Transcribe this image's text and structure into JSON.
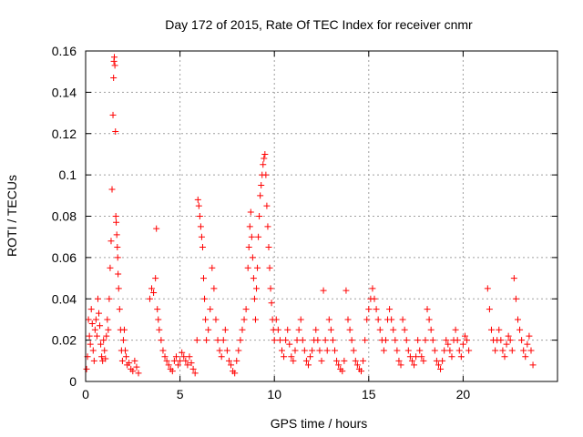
{
  "chart_data": {
    "type": "scatter",
    "title": "Day 172 of 2015, Rate Of TEC Index for receiver cnmr",
    "xlabel": "GPS time / hours",
    "ylabel": "ROTI / TECUs",
    "xlim": [
      0,
      25
    ],
    "ylim": [
      0,
      0.16
    ],
    "xticks": [
      0,
      5,
      10,
      15,
      20
    ],
    "xtick_labels": [
      "0",
      "5",
      "10",
      "15",
      "20"
    ],
    "yticks": [
      0,
      0.02,
      0.04,
      0.06,
      0.08,
      0.1,
      0.12,
      0.14,
      0.16
    ],
    "ytick_labels": [
      "0",
      "0.02",
      "0.04",
      "0.06",
      "0.08",
      "0.1",
      "0.12",
      "0.14",
      "0.16"
    ],
    "grid": true,
    "marker": "+",
    "color": "#ff0000",
    "series": [
      {
        "name": "ROTI",
        "points": [
          [
            0.05,
            0.006
          ],
          [
            0.1,
            0.012
          ],
          [
            0.15,
            0.03
          ],
          [
            0.2,
            0.022
          ],
          [
            0.25,
            0.018
          ],
          [
            0.3,
            0.035
          ],
          [
            0.35,
            0.028
          ],
          [
            0.4,
            0.015
          ],
          [
            0.45,
            0.01
          ],
          [
            0.5,
            0.025
          ],
          [
            0.55,
            0.03
          ],
          [
            0.6,
            0.022
          ],
          [
            0.65,
            0.04
          ],
          [
            0.7,
            0.033
          ],
          [
            0.75,
            0.027
          ],
          [
            0.8,
            0.018
          ],
          [
            0.85,
            0.012
          ],
          [
            0.9,
            0.01
          ],
          [
            0.95,
            0.02
          ],
          [
            1.0,
            0.015
          ],
          [
            1.05,
            0.011
          ],
          [
            1.1,
            0.022
          ],
          [
            1.15,
            0.03
          ],
          [
            1.2,
            0.025
          ],
          [
            1.25,
            0.04
          ],
          [
            1.3,
            0.055
          ],
          [
            1.35,
            0.068
          ],
          [
            1.4,
            0.093
          ],
          [
            1.45,
            0.129
          ],
          [
            1.48,
            0.147
          ],
          [
            1.5,
            0.155
          ],
          [
            1.52,
            0.157
          ],
          [
            1.55,
            0.153
          ],
          [
            1.58,
            0.121
          ],
          [
            1.6,
            0.08
          ],
          [
            1.62,
            0.077
          ],
          [
            1.65,
            0.071
          ],
          [
            1.68,
            0.065
          ],
          [
            1.7,
            0.06
          ],
          [
            1.72,
            0.052
          ],
          [
            1.75,
            0.045
          ],
          [
            1.8,
            0.035
          ],
          [
            1.85,
            0.025
          ],
          [
            1.9,
            0.015
          ],
          [
            1.95,
            0.01
          ],
          [
            2.0,
            0.02
          ],
          [
            2.05,
            0.025
          ],
          [
            2.1,
            0.015
          ],
          [
            2.15,
            0.012
          ],
          [
            2.2,
            0.008
          ],
          [
            2.3,
            0.009
          ],
          [
            2.4,
            0.006
          ],
          [
            2.5,
            0.005
          ],
          [
            2.6,
            0.01
          ],
          [
            2.7,
            0.007
          ],
          [
            2.8,
            0.004
          ],
          [
            3.4,
            0.04
          ],
          [
            3.5,
            0.045
          ],
          [
            3.6,
            0.043
          ],
          [
            3.7,
            0.05
          ],
          [
            3.75,
            0.074
          ],
          [
            3.8,
            0.035
          ],
          [
            3.85,
            0.03
          ],
          [
            3.9,
            0.025
          ],
          [
            4.0,
            0.02
          ],
          [
            4.1,
            0.015
          ],
          [
            4.2,
            0.012
          ],
          [
            4.3,
            0.01
          ],
          [
            4.4,
            0.008
          ],
          [
            4.5,
            0.006
          ],
          [
            4.6,
            0.005
          ],
          [
            4.7,
            0.01
          ],
          [
            4.8,
            0.012
          ],
          [
            4.9,
            0.008
          ],
          [
            5.0,
            0.01
          ],
          [
            5.1,
            0.014
          ],
          [
            5.2,
            0.012
          ],
          [
            5.3,
            0.01
          ],
          [
            5.4,
            0.008
          ],
          [
            5.5,
            0.012
          ],
          [
            5.6,
            0.009
          ],
          [
            5.7,
            0.006
          ],
          [
            5.8,
            0.004
          ],
          [
            5.9,
            0.02
          ],
          [
            5.95,
            0.088
          ],
          [
            6.0,
            0.085
          ],
          [
            6.05,
            0.08
          ],
          [
            6.1,
            0.075
          ],
          [
            6.15,
            0.07
          ],
          [
            6.2,
            0.065
          ],
          [
            6.25,
            0.05
          ],
          [
            6.3,
            0.04
          ],
          [
            6.35,
            0.03
          ],
          [
            6.4,
            0.02
          ],
          [
            6.5,
            0.025
          ],
          [
            6.6,
            0.035
          ],
          [
            6.7,
            0.055
          ],
          [
            6.8,
            0.045
          ],
          [
            6.9,
            0.03
          ],
          [
            7.0,
            0.02
          ],
          [
            7.1,
            0.015
          ],
          [
            7.2,
            0.012
          ],
          [
            7.3,
            0.02
          ],
          [
            7.4,
            0.025
          ],
          [
            7.5,
            0.015
          ],
          [
            7.6,
            0.01
          ],
          [
            7.7,
            0.008
          ],
          [
            7.8,
            0.005
          ],
          [
            7.9,
            0.004
          ],
          [
            8.0,
            0.01
          ],
          [
            8.1,
            0.015
          ],
          [
            8.2,
            0.02
          ],
          [
            8.3,
            0.025
          ],
          [
            8.4,
            0.03
          ],
          [
            8.5,
            0.035
          ],
          [
            8.6,
            0.055
          ],
          [
            8.65,
            0.065
          ],
          [
            8.7,
            0.075
          ],
          [
            8.75,
            0.082
          ],
          [
            8.8,
            0.07
          ],
          [
            8.85,
            0.06
          ],
          [
            8.9,
            0.05
          ],
          [
            8.95,
            0.04
          ],
          [
            9.0,
            0.03
          ],
          [
            9.05,
            0.045
          ],
          [
            9.1,
            0.055
          ],
          [
            9.15,
            0.07
          ],
          [
            9.2,
            0.08
          ],
          [
            9.25,
            0.09
          ],
          [
            9.3,
            0.095
          ],
          [
            9.35,
            0.1
          ],
          [
            9.4,
            0.105
          ],
          [
            9.45,
            0.108
          ],
          [
            9.5,
            0.11
          ],
          [
            9.55,
            0.1
          ],
          [
            9.6,
            0.085
          ],
          [
            9.65,
            0.075
          ],
          [
            9.7,
            0.065
          ],
          [
            9.75,
            0.055
          ],
          [
            9.8,
            0.045
          ],
          [
            9.85,
            0.038
          ],
          [
            9.9,
            0.03
          ],
          [
            9.95,
            0.025
          ],
          [
            10.0,
            0.02
          ],
          [
            10.1,
            0.03
          ],
          [
            10.2,
            0.025
          ],
          [
            10.3,
            0.02
          ],
          [
            10.4,
            0.015
          ],
          [
            10.5,
            0.012
          ],
          [
            10.6,
            0.02
          ],
          [
            10.7,
            0.025
          ],
          [
            10.8,
            0.018
          ],
          [
            10.9,
            0.012
          ],
          [
            11.0,
            0.01
          ],
          [
            11.1,
            0.015
          ],
          [
            11.2,
            0.02
          ],
          [
            11.3,
            0.025
          ],
          [
            11.4,
            0.03
          ],
          [
            11.5,
            0.02
          ],
          [
            11.6,
            0.015
          ],
          [
            11.7,
            0.01
          ],
          [
            11.8,
            0.008
          ],
          [
            11.9,
            0.012
          ],
          [
            12.0,
            0.015
          ],
          [
            12.1,
            0.02
          ],
          [
            12.2,
            0.025
          ],
          [
            12.3,
            0.02
          ],
          [
            12.4,
            0.015
          ],
          [
            12.5,
            0.01
          ],
          [
            12.6,
            0.044
          ],
          [
            12.7,
            0.02
          ],
          [
            12.8,
            0.015
          ],
          [
            12.9,
            0.03
          ],
          [
            13.0,
            0.025
          ],
          [
            13.1,
            0.02
          ],
          [
            13.2,
            0.015
          ],
          [
            13.3,
            0.01
          ],
          [
            13.4,
            0.008
          ],
          [
            13.5,
            0.006
          ],
          [
            13.6,
            0.005
          ],
          [
            13.7,
            0.01
          ],
          [
            13.8,
            0.044
          ],
          [
            13.9,
            0.03
          ],
          [
            14.0,
            0.025
          ],
          [
            14.1,
            0.02
          ],
          [
            14.2,
            0.015
          ],
          [
            14.3,
            0.01
          ],
          [
            14.4,
            0.008
          ],
          [
            14.5,
            0.006
          ],
          [
            14.6,
            0.005
          ],
          [
            14.7,
            0.01
          ],
          [
            14.8,
            0.02
          ],
          [
            14.9,
            0.03
          ],
          [
            15.0,
            0.035
          ],
          [
            15.1,
            0.04
          ],
          [
            15.2,
            0.045
          ],
          [
            15.3,
            0.04
          ],
          [
            15.4,
            0.035
          ],
          [
            15.5,
            0.03
          ],
          [
            15.6,
            0.025
          ],
          [
            15.7,
            0.02
          ],
          [
            15.8,
            0.015
          ],
          [
            15.9,
            0.02
          ],
          [
            16.0,
            0.03
          ],
          [
            16.1,
            0.035
          ],
          [
            16.2,
            0.03
          ],
          [
            16.3,
            0.025
          ],
          [
            16.4,
            0.02
          ],
          [
            16.5,
            0.015
          ],
          [
            16.6,
            0.01
          ],
          [
            16.7,
            0.008
          ],
          [
            16.8,
            0.03
          ],
          [
            16.9,
            0.025
          ],
          [
            17.0,
            0.02
          ],
          [
            17.1,
            0.015
          ],
          [
            17.2,
            0.012
          ],
          [
            17.3,
            0.01
          ],
          [
            17.4,
            0.008
          ],
          [
            17.5,
            0.012
          ],
          [
            17.6,
            0.02
          ],
          [
            17.7,
            0.015
          ],
          [
            17.8,
            0.012
          ],
          [
            17.9,
            0.01
          ],
          [
            18.0,
            0.02
          ],
          [
            18.1,
            0.035
          ],
          [
            18.2,
            0.03
          ],
          [
            18.3,
            0.025
          ],
          [
            18.4,
            0.02
          ],
          [
            18.5,
            0.015
          ],
          [
            18.6,
            0.01
          ],
          [
            18.7,
            0.008
          ],
          [
            18.8,
            0.006
          ],
          [
            18.9,
            0.01
          ],
          [
            19.0,
            0.015
          ],
          [
            19.1,
            0.02
          ],
          [
            19.2,
            0.018
          ],
          [
            19.3,
            0.015
          ],
          [
            19.4,
            0.012
          ],
          [
            19.5,
            0.02
          ],
          [
            19.6,
            0.025
          ],
          [
            19.7,
            0.02
          ],
          [
            19.8,
            0.015
          ],
          [
            19.9,
            0.012
          ],
          [
            20.0,
            0.018
          ],
          [
            20.1,
            0.022
          ],
          [
            20.2,
            0.02
          ],
          [
            20.3,
            0.015
          ],
          [
            21.3,
            0.045
          ],
          [
            21.4,
            0.035
          ],
          [
            21.5,
            0.025
          ],
          [
            21.6,
            0.02
          ],
          [
            21.7,
            0.015
          ],
          [
            21.8,
            0.02
          ],
          [
            21.9,
            0.025
          ],
          [
            22.0,
            0.02
          ],
          [
            22.1,
            0.015
          ],
          [
            22.2,
            0.012
          ],
          [
            22.3,
            0.018
          ],
          [
            22.4,
            0.022
          ],
          [
            22.5,
            0.02
          ],
          [
            22.6,
            0.015
          ],
          [
            22.7,
            0.05
          ],
          [
            22.8,
            0.04
          ],
          [
            22.9,
            0.03
          ],
          [
            23.0,
            0.025
          ],
          [
            23.1,
            0.02
          ],
          [
            23.2,
            0.015
          ],
          [
            23.3,
            0.012
          ],
          [
            23.4,
            0.018
          ],
          [
            23.5,
            0.022
          ],
          [
            23.6,
            0.015
          ],
          [
            23.7,
            0.008
          ]
        ]
      }
    ]
  }
}
